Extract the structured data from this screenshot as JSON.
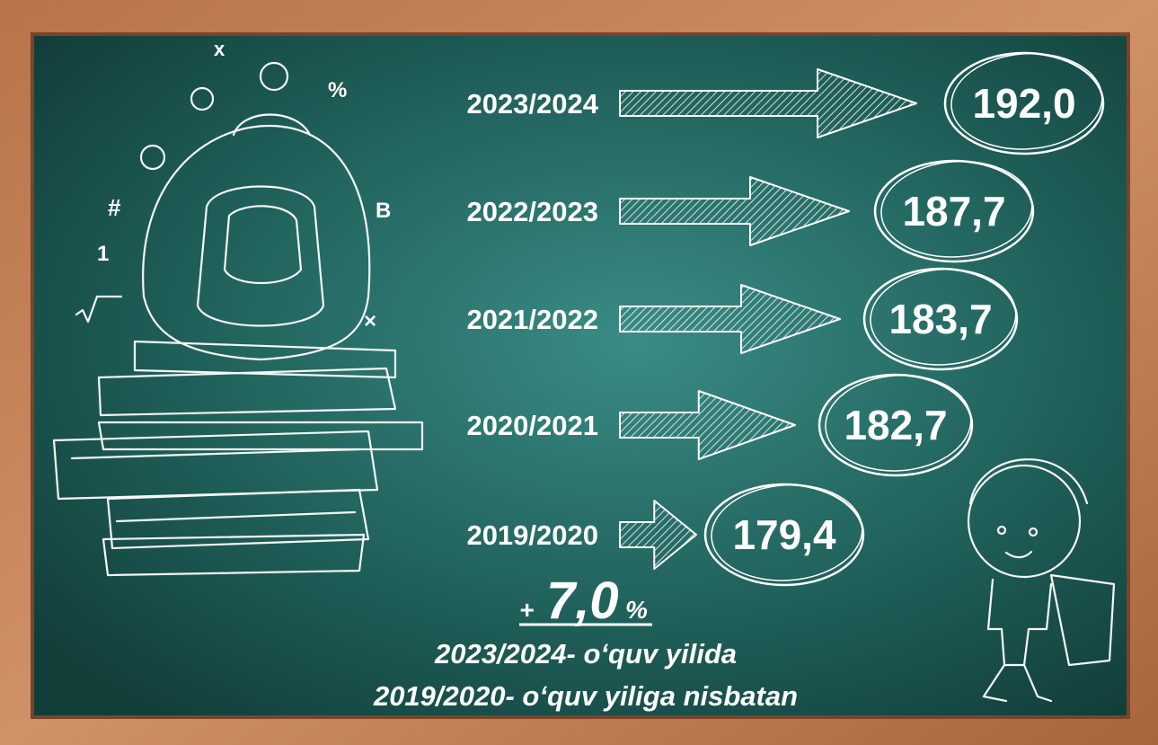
{
  "items": [
    {
      "year": "2023/2024",
      "value": "192,0"
    },
    {
      "year": "2022/2023",
      "value": "187,7"
    },
    {
      "year": "2021/2022",
      "value": "183,7"
    },
    {
      "year": "2020/2021",
      "value": "182,7"
    },
    {
      "year": "2019/2020",
      "value": "179,4"
    }
  ],
  "change": {
    "sign": "+",
    "number": "7,0",
    "unit": "%"
  },
  "caption": [
    "2023/2024- oʻquv yilida",
    "2019/2020- oʻquv yiliga nisbatan"
  ]
}
